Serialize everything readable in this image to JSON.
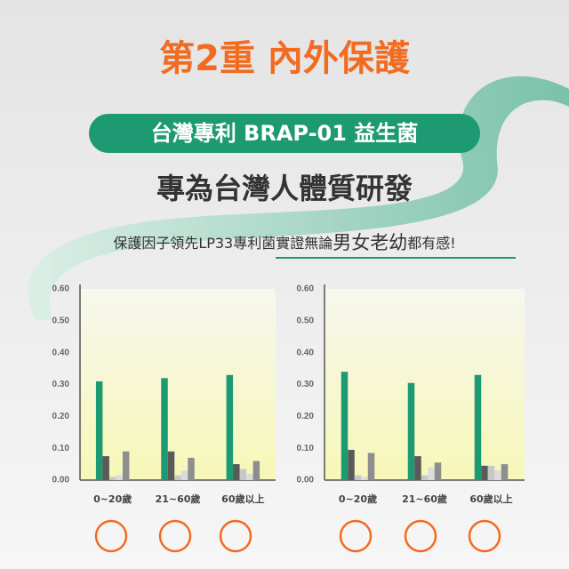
{
  "header": {
    "title": "第2重 內外保護",
    "badge": "台灣專利 BRAP-01 益生菌",
    "subtitle": "專為台灣人體質研發",
    "tagline": {
      "lead": "保護因子領先LP33專利菌實證無論",
      "highlight": "男女老幼",
      "tail": "都有感!"
    }
  },
  "chart_data": [
    {
      "type": "bar",
      "categories": [
        "0~20歲",
        "21~60歲",
        "60歲以上"
      ],
      "series": [
        {
          "color": "#1e9a72",
          "values": [
            0.31,
            0.32,
            0.33
          ]
        },
        {
          "color": "#5a5a5a",
          "values": [
            0.075,
            0.09,
            0.05
          ]
        },
        {
          "color": "#c8c8c8",
          "values": [
            0.01,
            0.015,
            0.035
          ]
        },
        {
          "color": "#dcdcdc",
          "values": [
            0.015,
            0.03,
            0.02
          ]
        },
        {
          "color": "#8e8e8e",
          "values": [
            0.09,
            0.07,
            0.06
          ]
        }
      ],
      "ylim": [
        0,
        0.6
      ],
      "yticks": [
        {
          "value": 0,
          "label": "0.00"
        },
        {
          "value": 0.1,
          "label": "0.10"
        },
        {
          "value": 0.2,
          "label": "0.20"
        },
        {
          "value": 0.3,
          "label": "0.30"
        },
        {
          "value": 0.4,
          "label": "0.40"
        },
        {
          "value": 0.5,
          "label": "0.50"
        },
        {
          "value": 0.6,
          "label": "0.60"
        }
      ]
    },
    {
      "type": "bar",
      "categories": [
        "0~20歲",
        "21~60歲",
        "60歲以上"
      ],
      "series": [
        {
          "color": "#1e9a72",
          "values": [
            0.34,
            0.305,
            0.33
          ]
        },
        {
          "color": "#5a5a5a",
          "values": [
            0.095,
            0.075,
            0.045
          ]
        },
        {
          "color": "#c8c8c8",
          "values": [
            0.015,
            0.015,
            0.045
          ]
        },
        {
          "color": "#dcdcdc",
          "values": [
            0.01,
            0.04,
            0.03
          ]
        },
        {
          "color": "#8e8e8e",
          "values": [
            0.085,
            0.055,
            0.05
          ]
        }
      ],
      "ylim": [
        0,
        0.6
      ],
      "yticks": [
        {
          "value": 0,
          "label": "0.00"
        },
        {
          "value": 0.1,
          "label": "0.10"
        },
        {
          "value": 0.2,
          "label": "0.20"
        },
        {
          "value": 0.3,
          "label": "0.30"
        },
        {
          "value": 0.4,
          "label": "0.40"
        },
        {
          "value": 0.5,
          "label": "0.50"
        },
        {
          "value": 0.6,
          "label": "0.60"
        }
      ]
    }
  ]
}
